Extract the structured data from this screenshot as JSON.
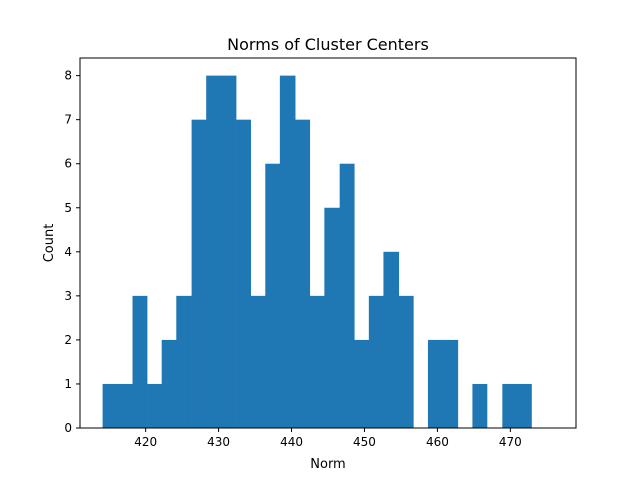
{
  "chart_data": {
    "type": "bar",
    "title": "Norms of Cluster Centers",
    "xlabel": "Norm",
    "ylabel": "Count",
    "xlim": [
      411,
      479
    ],
    "ylim": [
      0,
      8.4
    ],
    "xticks": [
      420,
      430,
      440,
      450,
      460,
      470
    ],
    "yticks": [
      0,
      1,
      2,
      3,
      4,
      5,
      6,
      7,
      8
    ],
    "grid": false,
    "bin_edges": [
      414.1,
      416.1,
      418.2,
      420.2,
      422.2,
      424.2,
      426.3,
      428.3,
      430.3,
      432.4,
      434.4,
      436.4,
      438.4,
      440.5,
      442.5,
      444.5,
      446.6,
      448.6,
      450.6,
      452.6,
      454.7,
      456.7,
      458.7,
      460.8,
      462.8,
      464.8,
      466.8,
      468.9,
      470.9,
      472.9,
      475.0
    ],
    "counts": [
      1,
      1,
      3,
      1,
      2,
      3,
      7,
      8,
      8,
      7,
      3,
      6,
      8,
      7,
      3,
      5,
      6,
      2,
      3,
      4,
      3,
      0,
      2,
      2,
      0,
      1,
      0,
      1,
      1,
      0
    ],
    "bar_color": "#1f77b4"
  }
}
